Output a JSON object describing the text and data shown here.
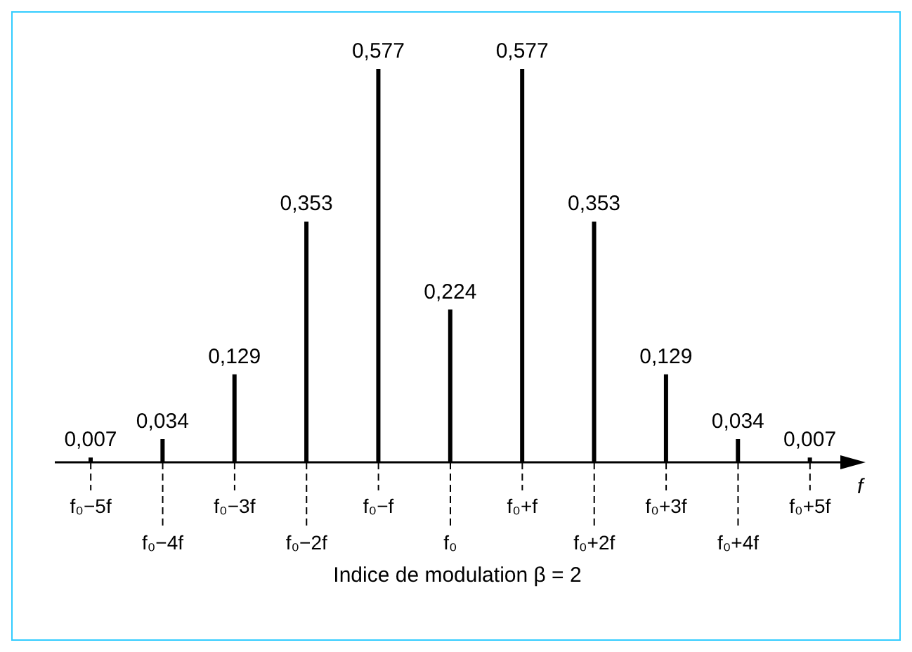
{
  "chart_data": {
    "type": "bar",
    "categories": [
      "f₀−5f",
      "f₀−4f",
      "f₀−3f",
      "f₀−2f",
      "f₀−f",
      "f₀",
      "f₀+f",
      "f₀+2f",
      "f₀+3f",
      "f₀+4f",
      "f₀+5f"
    ],
    "values": [
      0.007,
      0.034,
      0.129,
      0.353,
      0.577,
      0.224,
      0.577,
      0.353,
      0.129,
      0.034,
      0.007
    ],
    "value_labels": [
      "0,007",
      "0,034",
      "0,129",
      "0,353",
      "0,577",
      "0,224",
      "0,577",
      "0,353",
      "0,129",
      "0,034",
      "0,007"
    ],
    "color": "#000000",
    "xlabel": "f",
    "annotations": [
      "Indice de modulation β = 2"
    ]
  }
}
